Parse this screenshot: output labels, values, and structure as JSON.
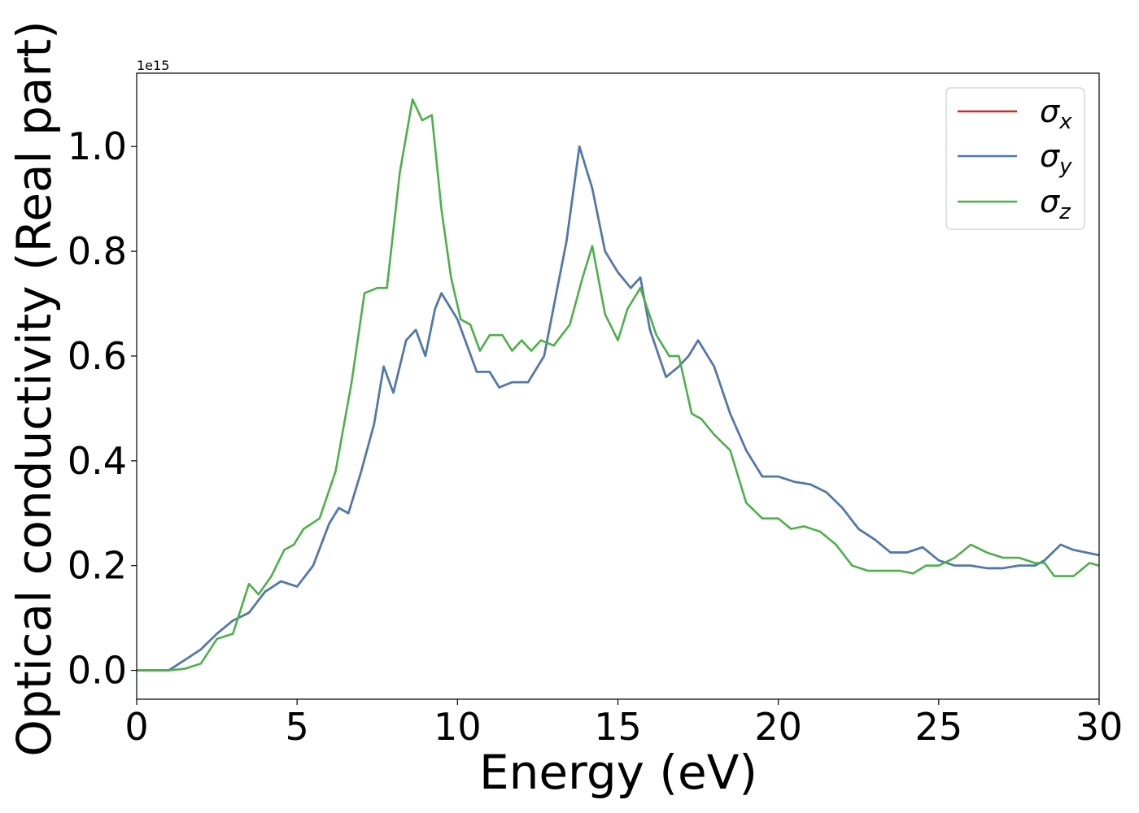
{
  "chart_data": {
    "type": "line",
    "title": "",
    "xlabel": "Energy (eV)",
    "ylabel": "Optical conductivity (Real part)",
    "y_offset_label": "1e15",
    "xlim": [
      0,
      30
    ],
    "ylim": [
      -0.055,
      1.14
    ],
    "x_ticks": [
      0,
      5,
      10,
      15,
      20,
      25,
      30
    ],
    "x_tick_labels": [
      "0",
      "5",
      "10",
      "15",
      "20",
      "25",
      "30"
    ],
    "y_ticks": [
      0.0,
      0.2,
      0.4,
      0.6,
      0.8,
      1.0
    ],
    "y_tick_labels": [
      "0.0",
      "0.2",
      "0.4",
      "0.6",
      "0.8",
      "1.0"
    ],
    "grid": false,
    "legend_position": "top-right",
    "series": [
      {
        "name": "σ",
        "subscript": "x",
        "color": "#d62728",
        "points": [
          [
            0,
            0
          ],
          [
            1,
            0
          ],
          [
            1.5,
            0.02
          ],
          [
            2,
            0.04
          ],
          [
            2.5,
            0.07
          ],
          [
            3,
            0.095
          ],
          [
            3.5,
            0.11
          ],
          [
            4,
            0.15
          ],
          [
            4.5,
            0.17
          ],
          [
            5,
            0.16
          ],
          [
            5.5,
            0.2
          ],
          [
            6,
            0.28
          ],
          [
            6.3,
            0.31
          ],
          [
            6.6,
            0.3
          ],
          [
            7,
            0.38
          ],
          [
            7.4,
            0.47
          ],
          [
            7.7,
            0.58
          ],
          [
            8,
            0.53
          ],
          [
            8.4,
            0.63
          ],
          [
            8.7,
            0.65
          ],
          [
            9,
            0.6
          ],
          [
            9.3,
            0.69
          ],
          [
            9.5,
            0.72
          ],
          [
            10,
            0.67
          ],
          [
            10.6,
            0.57
          ],
          [
            11,
            0.57
          ],
          [
            11.3,
            0.54
          ],
          [
            11.7,
            0.55
          ],
          [
            12.2,
            0.55
          ],
          [
            12.7,
            0.6
          ],
          [
            13.4,
            0.82
          ],
          [
            13.8,
            1.0
          ],
          [
            14.2,
            0.92
          ],
          [
            14.6,
            0.8
          ],
          [
            15,
            0.76
          ],
          [
            15.4,
            0.73
          ],
          [
            15.7,
            0.75
          ],
          [
            16,
            0.65
          ],
          [
            16.5,
            0.56
          ],
          [
            16.9,
            0.58
          ],
          [
            17.2,
            0.6
          ],
          [
            17.5,
            0.63
          ],
          [
            18,
            0.58
          ],
          [
            18.5,
            0.49
          ],
          [
            19,
            0.42
          ],
          [
            19.5,
            0.37
          ],
          [
            20,
            0.37
          ],
          [
            20.5,
            0.36
          ],
          [
            21,
            0.355
          ],
          [
            21.5,
            0.34
          ],
          [
            22,
            0.31
          ],
          [
            22.5,
            0.27
          ],
          [
            23,
            0.25
          ],
          [
            23.5,
            0.225
          ],
          [
            24,
            0.225
          ],
          [
            24.5,
            0.235
          ],
          [
            25,
            0.21
          ],
          [
            25.5,
            0.2
          ],
          [
            26,
            0.2
          ],
          [
            26.5,
            0.195
          ],
          [
            27,
            0.195
          ],
          [
            27.5,
            0.2
          ],
          [
            28,
            0.2
          ],
          [
            28.3,
            0.21
          ],
          [
            28.8,
            0.24
          ],
          [
            29.2,
            0.23
          ],
          [
            29.6,
            0.225
          ],
          [
            30,
            0.22
          ]
        ]
      },
      {
        "name": "σ",
        "subscript": "y",
        "color": "#4a7bb0",
        "points": [
          [
            0,
            0
          ],
          [
            1,
            0
          ],
          [
            1.5,
            0.02
          ],
          [
            2,
            0.04
          ],
          [
            2.5,
            0.07
          ],
          [
            3,
            0.095
          ],
          [
            3.5,
            0.11
          ],
          [
            4,
            0.15
          ],
          [
            4.5,
            0.17
          ],
          [
            5,
            0.16
          ],
          [
            5.5,
            0.2
          ],
          [
            6,
            0.28
          ],
          [
            6.3,
            0.31
          ],
          [
            6.6,
            0.3
          ],
          [
            7,
            0.38
          ],
          [
            7.4,
            0.47
          ],
          [
            7.7,
            0.58
          ],
          [
            8,
            0.53
          ],
          [
            8.4,
            0.63
          ],
          [
            8.7,
            0.65
          ],
          [
            9,
            0.6
          ],
          [
            9.3,
            0.69
          ],
          [
            9.5,
            0.72
          ],
          [
            10,
            0.67
          ],
          [
            10.6,
            0.57
          ],
          [
            11,
            0.57
          ],
          [
            11.3,
            0.54
          ],
          [
            11.7,
            0.55
          ],
          [
            12.2,
            0.55
          ],
          [
            12.7,
            0.6
          ],
          [
            13.4,
            0.82
          ],
          [
            13.8,
            1.0
          ],
          [
            14.2,
            0.92
          ],
          [
            14.6,
            0.8
          ],
          [
            15,
            0.76
          ],
          [
            15.4,
            0.73
          ],
          [
            15.7,
            0.75
          ],
          [
            16,
            0.65
          ],
          [
            16.5,
            0.56
          ],
          [
            16.9,
            0.58
          ],
          [
            17.2,
            0.6
          ],
          [
            17.5,
            0.63
          ],
          [
            18,
            0.58
          ],
          [
            18.5,
            0.49
          ],
          [
            19,
            0.42
          ],
          [
            19.5,
            0.37
          ],
          [
            20,
            0.37
          ],
          [
            20.5,
            0.36
          ],
          [
            21,
            0.355
          ],
          [
            21.5,
            0.34
          ],
          [
            22,
            0.31
          ],
          [
            22.5,
            0.27
          ],
          [
            23,
            0.25
          ],
          [
            23.5,
            0.225
          ],
          [
            24,
            0.225
          ],
          [
            24.5,
            0.235
          ],
          [
            25,
            0.21
          ],
          [
            25.5,
            0.2
          ],
          [
            26,
            0.2
          ],
          [
            26.5,
            0.195
          ],
          [
            27,
            0.195
          ],
          [
            27.5,
            0.2
          ],
          [
            28,
            0.2
          ],
          [
            28.3,
            0.21
          ],
          [
            28.8,
            0.24
          ],
          [
            29.2,
            0.23
          ],
          [
            29.6,
            0.225
          ],
          [
            30,
            0.22
          ]
        ]
      },
      {
        "name": "σ",
        "subscript": "z",
        "color": "#4daf4a",
        "points": [
          [
            0,
            0
          ],
          [
            1,
            0
          ],
          [
            1.5,
            0.003
          ],
          [
            2,
            0.013
          ],
          [
            2.5,
            0.06
          ],
          [
            3,
            0.07
          ],
          [
            3.5,
            0.165
          ],
          [
            3.8,
            0.145
          ],
          [
            4.2,
            0.18
          ],
          [
            4.6,
            0.23
          ],
          [
            4.9,
            0.24
          ],
          [
            5.2,
            0.27
          ],
          [
            5.7,
            0.29
          ],
          [
            6.2,
            0.38
          ],
          [
            6.7,
            0.55
          ],
          [
            7.1,
            0.72
          ],
          [
            7.5,
            0.73
          ],
          [
            7.8,
            0.73
          ],
          [
            8.2,
            0.95
          ],
          [
            8.6,
            1.09
          ],
          [
            8.9,
            1.05
          ],
          [
            9.2,
            1.06
          ],
          [
            9.5,
            0.88
          ],
          [
            9.8,
            0.75
          ],
          [
            10.1,
            0.67
          ],
          [
            10.4,
            0.66
          ],
          [
            10.7,
            0.61
          ],
          [
            11,
            0.64
          ],
          [
            11.4,
            0.64
          ],
          [
            11.7,
            0.61
          ],
          [
            12,
            0.63
          ],
          [
            12.3,
            0.61
          ],
          [
            12.6,
            0.63
          ],
          [
            13,
            0.62
          ],
          [
            13.5,
            0.66
          ],
          [
            13.9,
            0.75
          ],
          [
            14.2,
            0.81
          ],
          [
            14.6,
            0.68
          ],
          [
            15,
            0.63
          ],
          [
            15.3,
            0.69
          ],
          [
            15.7,
            0.73
          ],
          [
            16.2,
            0.64
          ],
          [
            16.6,
            0.6
          ],
          [
            16.9,
            0.6
          ],
          [
            17.3,
            0.49
          ],
          [
            17.6,
            0.48
          ],
          [
            18,
            0.45
          ],
          [
            18.5,
            0.42
          ],
          [
            19,
            0.32
          ],
          [
            19.5,
            0.29
          ],
          [
            20,
            0.29
          ],
          [
            20.4,
            0.27
          ],
          [
            20.8,
            0.275
          ],
          [
            21.3,
            0.265
          ],
          [
            21.8,
            0.24
          ],
          [
            22.3,
            0.2
          ],
          [
            22.8,
            0.19
          ],
          [
            23.3,
            0.19
          ],
          [
            23.8,
            0.19
          ],
          [
            24.2,
            0.185
          ],
          [
            24.6,
            0.2
          ],
          [
            25,
            0.2
          ],
          [
            25.5,
            0.215
          ],
          [
            26,
            0.24
          ],
          [
            26.5,
            0.225
          ],
          [
            27,
            0.215
          ],
          [
            27.5,
            0.215
          ],
          [
            28,
            0.205
          ],
          [
            28.3,
            0.205
          ],
          [
            28.6,
            0.18
          ],
          [
            29.2,
            0.18
          ],
          [
            29.7,
            0.205
          ],
          [
            30,
            0.2
          ]
        ]
      }
    ]
  }
}
